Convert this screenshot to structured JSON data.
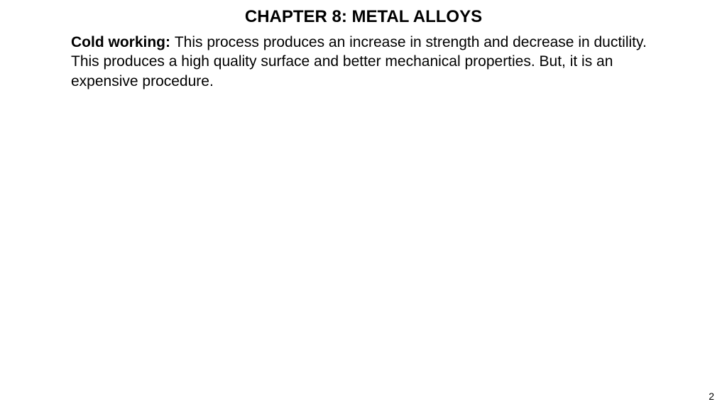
{
  "slide": {
    "title": "CHAPTER 8: METAL ALLOYS",
    "term": "Cold working: ",
    "description": "This process produces an increase in strength and decrease in ductility. This produces a high quality surface and better mechanical properties. But, it is an expensive procedure.",
    "page_number": "2"
  },
  "styling": {
    "background_color": "#ffffff",
    "text_color": "#000000",
    "title_fontsize": 24,
    "body_fontsize": 21,
    "page_number_fontsize": 14,
    "font_family": "Arial, Helvetica, sans-serif"
  }
}
